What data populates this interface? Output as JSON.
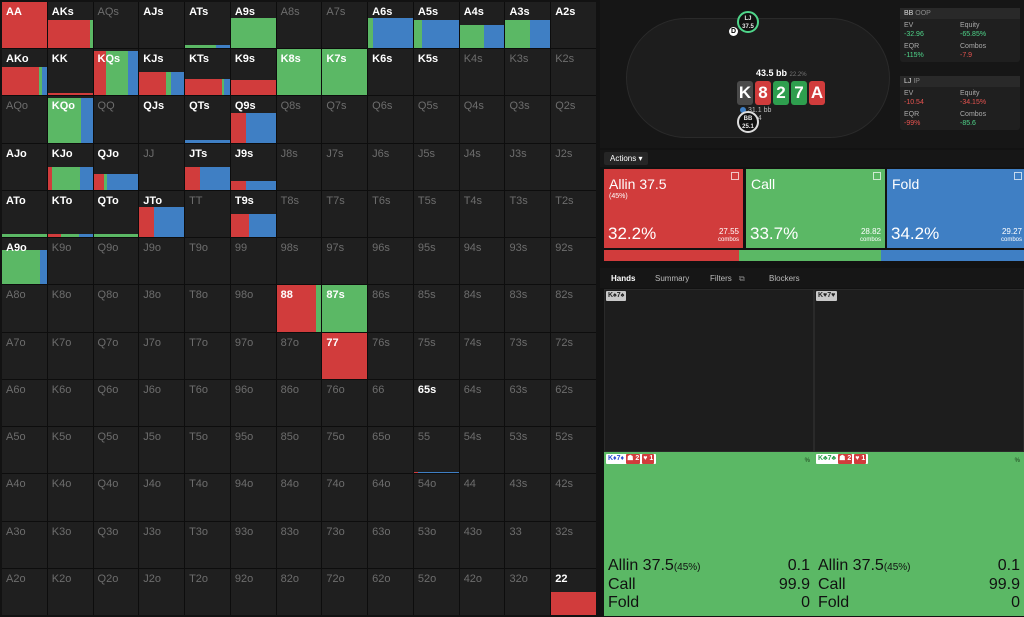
{
  "grid": [
    [
      {
        "h": "AA",
        "a": 1,
        "r": 100,
        "g": 0,
        "b": 0,
        "f": 1
      },
      {
        "h": "AKs",
        "a": 1,
        "r": 95,
        "g": 5,
        "b": 0,
        "f": 0.62
      },
      {
        "h": "AQs",
        "a": 0
      },
      {
        "h": "AJs",
        "a": 1,
        "r": 0,
        "g": 0,
        "b": 0,
        "f": 0
      },
      {
        "h": "ATs",
        "a": 1,
        "r": 0,
        "g": 70,
        "b": 30,
        "f": 0.06
      },
      {
        "h": "A9s",
        "a": 1,
        "r": 0,
        "g": 100,
        "b": 0,
        "f": 0.65
      },
      {
        "h": "A8s",
        "a": 0
      },
      {
        "h": "A7s",
        "a": 0
      },
      {
        "h": "A6s",
        "a": 1,
        "r": 0,
        "g": 10,
        "b": 90,
        "f": 0.65
      },
      {
        "h": "A5s",
        "a": 1,
        "r": 0,
        "g": 18,
        "b": 82,
        "f": 0.62
      },
      {
        "h": "A4s",
        "a": 1,
        "r": 0,
        "g": 55,
        "b": 45,
        "f": 0.5
      },
      {
        "h": "A3s",
        "a": 1,
        "r": 0,
        "g": 55,
        "b": 45,
        "f": 0.62
      },
      {
        "h": "A2s",
        "a": 1,
        "r": 0,
        "g": 0,
        "b": 0,
        "f": 0
      }
    ],
    [
      {
        "h": "AKo",
        "a": 1,
        "r": 82,
        "g": 8,
        "b": 10,
        "f": 0.62
      },
      {
        "h": "KK",
        "a": 1,
        "r": 100,
        "g": 0,
        "b": 0,
        "f": 0.06
      },
      {
        "h": "KQs",
        "a": 1,
        "r": 28,
        "g": 50,
        "b": 22,
        "f": 0.96
      },
      {
        "h": "KJs",
        "a": 1,
        "r": 60,
        "g": 10,
        "b": 30,
        "f": 0.5
      },
      {
        "h": "KTs",
        "a": 1,
        "r": 82,
        "g": 4,
        "b": 14,
        "f": 0.35
      },
      {
        "h": "K9s",
        "a": 1,
        "r": 100,
        "g": 0,
        "b": 0,
        "f": 0.33
      },
      {
        "h": "K8s",
        "a": 1,
        "r": 0,
        "g": 100,
        "b": 0,
        "f": 1
      },
      {
        "h": "K7s",
        "a": 1,
        "r": 0,
        "g": 100,
        "b": 0,
        "f": 1
      },
      {
        "h": "K6s",
        "a": 1,
        "r": 0,
        "g": 0,
        "b": 0,
        "f": 0
      },
      {
        "h": "K5s",
        "a": 1,
        "r": 0,
        "g": 0,
        "b": 0,
        "f": 0
      },
      {
        "h": "K4s",
        "a": 0
      },
      {
        "h": "K3s",
        "a": 0
      },
      {
        "h": "K2s",
        "a": 0
      }
    ],
    [
      {
        "h": "AQo",
        "a": 0
      },
      {
        "h": "KQo",
        "a": 1,
        "r": 0,
        "g": 75,
        "b": 25,
        "f": 0.96
      },
      {
        "h": "QQ",
        "a": 0
      },
      {
        "h": "QJs",
        "a": 1,
        "r": 0,
        "g": 0,
        "b": 0,
        "f": 0
      },
      {
        "h": "QTs",
        "a": 1,
        "r": 0,
        "g": 0,
        "b": 100,
        "f": 0.05
      },
      {
        "h": "Q9s",
        "a": 1,
        "r": 33,
        "g": 0,
        "b": 67,
        "f": 0.65
      },
      {
        "h": "Q8s",
        "a": 0
      },
      {
        "h": "Q7s",
        "a": 0
      },
      {
        "h": "Q6s",
        "a": 0
      },
      {
        "h": "Q5s",
        "a": 0
      },
      {
        "h": "Q4s",
        "a": 0
      },
      {
        "h": "Q3s",
        "a": 0
      },
      {
        "h": "Q2s",
        "a": 0
      }
    ],
    [
      {
        "h": "AJo",
        "a": 1,
        "r": 0,
        "g": 0,
        "b": 0,
        "f": 0
      },
      {
        "h": "KJo",
        "a": 1,
        "r": 10,
        "g": 62,
        "b": 28,
        "f": 0.5
      },
      {
        "h": "QJo",
        "a": 1,
        "r": 24,
        "g": 6,
        "b": 70,
        "f": 0.35
      },
      {
        "h": "JJ",
        "a": 0
      },
      {
        "h": "JTs",
        "a": 1,
        "r": 33,
        "g": 0,
        "b": 67,
        "f": 0.5
      },
      {
        "h": "J9s",
        "a": 1,
        "r": 33,
        "g": 0,
        "b": 67,
        "f": 0.2
      },
      {
        "h": "J8s",
        "a": 0
      },
      {
        "h": "J7s",
        "a": 0
      },
      {
        "h": "J6s",
        "a": 0
      },
      {
        "h": "J5s",
        "a": 0
      },
      {
        "h": "J4s",
        "a": 0
      },
      {
        "h": "J3s",
        "a": 0
      },
      {
        "h": "J2s",
        "a": 0
      }
    ],
    [
      {
        "h": "ATo",
        "a": 1,
        "r": 0,
        "g": 100,
        "b": 0,
        "f": 0.06
      },
      {
        "h": "KTo",
        "a": 1,
        "r": 30,
        "g": 40,
        "b": 30,
        "f": 0.06
      },
      {
        "h": "QTo",
        "a": 1,
        "r": 0,
        "g": 100,
        "b": 0,
        "f": 0.06
      },
      {
        "h": "JTo",
        "a": 1,
        "r": 32,
        "g": 0,
        "b": 68,
        "f": 0.65
      },
      {
        "h": "TT",
        "a": 0
      },
      {
        "h": "T9s",
        "a": 1,
        "r": 40,
        "g": 0,
        "b": 60,
        "f": 0.5
      },
      {
        "h": "T8s",
        "a": 0
      },
      {
        "h": "T7s",
        "a": 0
      },
      {
        "h": "T6s",
        "a": 0
      },
      {
        "h": "T5s",
        "a": 0
      },
      {
        "h": "T4s",
        "a": 0
      },
      {
        "h": "T3s",
        "a": 0
      },
      {
        "h": "T2s",
        "a": 0
      }
    ],
    [
      {
        "h": "A9o",
        "a": 1,
        "r": 0,
        "g": 85,
        "b": 15,
        "f": 0.75
      },
      {
        "h": "K9o",
        "a": 0
      },
      {
        "h": "Q9o",
        "a": 0
      },
      {
        "h": "J9o",
        "a": 0
      },
      {
        "h": "T9o",
        "a": 0
      },
      {
        "h": "99",
        "a": 0
      },
      {
        "h": "98s",
        "a": 0
      },
      {
        "h": "97s",
        "a": 0
      },
      {
        "h": "96s",
        "a": 0
      },
      {
        "h": "95s",
        "a": 0
      },
      {
        "h": "94s",
        "a": 0
      },
      {
        "h": "93s",
        "a": 0
      },
      {
        "h": "92s",
        "a": 0
      }
    ],
    [
      {
        "h": "A8o",
        "a": 0
      },
      {
        "h": "K8o",
        "a": 0
      },
      {
        "h": "Q8o",
        "a": 0
      },
      {
        "h": "J8o",
        "a": 0
      },
      {
        "h": "T8o",
        "a": 0
      },
      {
        "h": "98o",
        "a": 0
      },
      {
        "h": "88",
        "a": 1,
        "r": 88,
        "g": 12,
        "b": 0,
        "f": 1
      },
      {
        "h": "87s",
        "a": 1,
        "r": 0,
        "g": 100,
        "b": 0,
        "f": 1
      },
      {
        "h": "86s",
        "a": 0
      },
      {
        "h": "85s",
        "a": 0
      },
      {
        "h": "84s",
        "a": 0
      },
      {
        "h": "83s",
        "a": 0
      },
      {
        "h": "82s",
        "a": 0
      }
    ],
    [
      {
        "h": "A7o",
        "a": 0
      },
      {
        "h": "K7o",
        "a": 0
      },
      {
        "h": "Q7o",
        "a": 0
      },
      {
        "h": "J7o",
        "a": 0
      },
      {
        "h": "T7o",
        "a": 0
      },
      {
        "h": "97o",
        "a": 0
      },
      {
        "h": "87o",
        "a": 0
      },
      {
        "h": "77",
        "a": 1,
        "r": 100,
        "g": 0,
        "b": 0,
        "f": 1
      },
      {
        "h": "76s",
        "a": 0
      },
      {
        "h": "75s",
        "a": 0
      },
      {
        "h": "74s",
        "a": 0
      },
      {
        "h": "73s",
        "a": 0
      },
      {
        "h": "72s",
        "a": 0
      }
    ],
    [
      {
        "h": "A6o",
        "a": 0
      },
      {
        "h": "K6o",
        "a": 0
      },
      {
        "h": "Q6o",
        "a": 0
      },
      {
        "h": "J6o",
        "a": 0
      },
      {
        "h": "T6o",
        "a": 0
      },
      {
        "h": "96o",
        "a": 0
      },
      {
        "h": "86o",
        "a": 0
      },
      {
        "h": "76o",
        "a": 0
      },
      {
        "h": "66",
        "a": 0
      },
      {
        "h": "65s",
        "a": 1,
        "r": 0,
        "g": 0,
        "b": 0,
        "f": 0
      },
      {
        "h": "64s",
        "a": 0
      },
      {
        "h": "63s",
        "a": 0
      },
      {
        "h": "62s",
        "a": 0
      }
    ],
    [
      {
        "h": "A5o",
        "a": 0
      },
      {
        "h": "K5o",
        "a": 0
      },
      {
        "h": "Q5o",
        "a": 0
      },
      {
        "h": "J5o",
        "a": 0
      },
      {
        "h": "T5o",
        "a": 0
      },
      {
        "h": "95o",
        "a": 0
      },
      {
        "h": "85o",
        "a": 0
      },
      {
        "h": "75o",
        "a": 0
      },
      {
        "h": "65o",
        "a": 0
      },
      {
        "h": "55",
        "a": 0,
        "r": 10,
        "g": 0,
        "b": 90,
        "f": 0.03
      },
      {
        "h": "54s",
        "a": 0
      },
      {
        "h": "53s",
        "a": 0
      },
      {
        "h": "52s",
        "a": 0
      }
    ],
    [
      {
        "h": "A4o",
        "a": 0
      },
      {
        "h": "K4o",
        "a": 0
      },
      {
        "h": "Q4o",
        "a": 0
      },
      {
        "h": "J4o",
        "a": 0
      },
      {
        "h": "T4o",
        "a": 0
      },
      {
        "h": "94o",
        "a": 0
      },
      {
        "h": "84o",
        "a": 0
      },
      {
        "h": "74o",
        "a": 0
      },
      {
        "h": "64o",
        "a": 0
      },
      {
        "h": "54o",
        "a": 0
      },
      {
        "h": "44",
        "a": 0
      },
      {
        "h": "43s",
        "a": 0
      },
      {
        "h": "42s",
        "a": 0
      }
    ],
    [
      {
        "h": "A3o",
        "a": 0
      },
      {
        "h": "K3o",
        "a": 0
      },
      {
        "h": "Q3o",
        "a": 0
      },
      {
        "h": "J3o",
        "a": 0
      },
      {
        "h": "T3o",
        "a": 0
      },
      {
        "h": "93o",
        "a": 0
      },
      {
        "h": "83o",
        "a": 0
      },
      {
        "h": "73o",
        "a": 0
      },
      {
        "h": "63o",
        "a": 0
      },
      {
        "h": "53o",
        "a": 0
      },
      {
        "h": "43o",
        "a": 0
      },
      {
        "h": "33",
        "a": 0
      },
      {
        "h": "32s",
        "a": 0
      }
    ],
    [
      {
        "h": "A2o",
        "a": 0
      },
      {
        "h": "K2o",
        "a": 0
      },
      {
        "h": "Q2o",
        "a": 0
      },
      {
        "h": "J2o",
        "a": 0
      },
      {
        "h": "T2o",
        "a": 0
      },
      {
        "h": "92o",
        "a": 0
      },
      {
        "h": "82o",
        "a": 0
      },
      {
        "h": "72o",
        "a": 0
      },
      {
        "h": "62o",
        "a": 0
      },
      {
        "h": "52o",
        "a": 0
      },
      {
        "h": "42o",
        "a": 0
      },
      {
        "h": "32o",
        "a": 0
      },
      {
        "h": "22",
        "a": 1,
        "r": 100,
        "g": 0,
        "b": 0,
        "f": 0.5
      }
    ]
  ],
  "table": {
    "lj_pos": "LJ",
    "lj_stack": "37.5",
    "bb_pos": "BB",
    "bb_stack": "25.1",
    "dealer": "D",
    "pot": "43.5 bb",
    "pot_pct": "22.2%",
    "board": [
      {
        "rank": "K",
        "color": "#4a4a4a"
      },
      {
        "rank": "8",
        "color": "#d13c3c"
      },
      {
        "rank": "2",
        "color": "#2e9e4e"
      },
      {
        "rank": "7",
        "color": "#2e9e4e"
      },
      {
        "rank": "A",
        "color": "#d13c3c"
      }
    ],
    "chip_top": "31.1 bb",
    "chip_bottom": "12.4"
  },
  "stats": {
    "bb": {
      "header": "BB",
      "header_sub": "OOP",
      "ev_label": "EV",
      "ev": "-32.96",
      "eq_label": "Equity",
      "eq": "-65.85%",
      "eqr_label": "EQR",
      "eqr": "-115%",
      "combos_label": "Combos",
      "combos": "-7.9"
    },
    "lj": {
      "header": "LJ",
      "header_sub": "IP",
      "ev_label": "EV",
      "ev": "-10.54",
      "eq_label": "Equity",
      "eq": "-34.15%",
      "eqr_label": "EQR",
      "eqr": "-99%",
      "combos_label": "Combos",
      "combos": "-85.6"
    }
  },
  "actions_label": "Actions",
  "actions": [
    {
      "name": "Allin 37.5",
      "sub": "(45%)",
      "pct": "32.2%",
      "combos": "27.55",
      "combos_label": "combos",
      "color": "#d13c3c",
      "freq": 32.2
    },
    {
      "name": "Call",
      "sub": "",
      "pct": "33.7%",
      "combos": "28.82",
      "combos_label": "combos",
      "color": "#5bb865",
      "freq": 33.7
    },
    {
      "name": "Fold",
      "sub": "",
      "pct": "34.2%",
      "combos": "29.27",
      "combos_label": "combos",
      "color": "#3f7fc4",
      "freq": 34.2
    }
  ],
  "tabs": [
    "Hands",
    "Summary",
    "Filters",
    "Blockers"
  ],
  "hand_tiles": [
    {
      "combo": "K♠7♠",
      "rank": "K",
      "rank2": "7",
      "suit": "♠",
      "suit_color": "#222"
    },
    {
      "combo": "K♥7♥",
      "rank": "K",
      "rank2": "7",
      "suit": "♥",
      "suit_color": "#d13c3c"
    },
    {
      "combo": "K♦7♦",
      "suit_color": "#2a4fd1",
      "b1": "2",
      "b2": "1",
      "pct": "%",
      "rows": [
        {
          "name": "Allin 37.5",
          "sub": "(45%)",
          "val": "0.1"
        },
        {
          "name": "Call",
          "sub": "",
          "val": "99.9"
        },
        {
          "name": "Fold",
          "sub": "",
          "val": "0"
        }
      ]
    },
    {
      "combo": "K♣7♣",
      "suit_color": "#2e9e4e",
      "b1": "2",
      "b2": "1",
      "pct": "%",
      "rows": [
        {
          "name": "Allin 37.5",
          "sub": "(45%)",
          "val": "0.1"
        },
        {
          "name": "Call",
          "sub": "",
          "val": "99.9"
        },
        {
          "name": "Fold",
          "sub": "",
          "val": "0"
        }
      ]
    }
  ],
  "colors": {
    "raise": "#d13c3c",
    "call": "#5bb865",
    "fold": "#3f7fc4"
  }
}
